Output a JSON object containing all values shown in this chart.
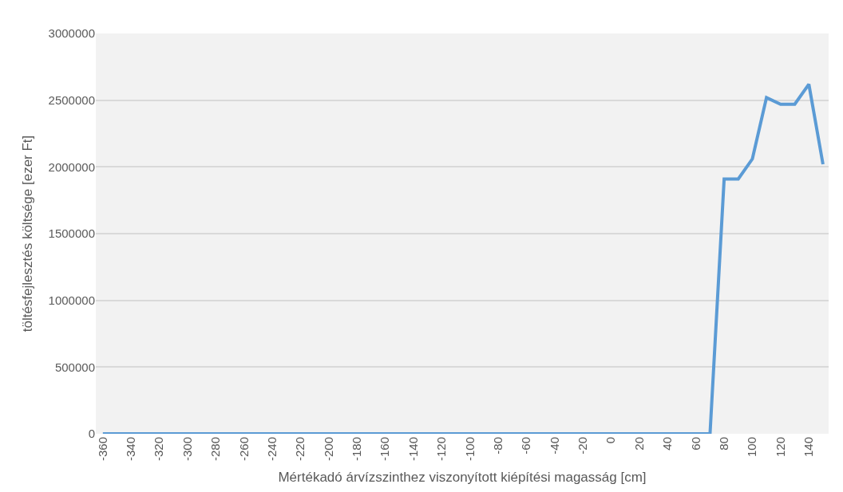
{
  "chart_data": {
    "type": "line",
    "xlabel": "Mértékadó árvízszinthez viszonyított kiépítési magasság [cm]",
    "ylabel": "töltésfejlesztés költsége [ezer Ft]",
    "categories": [
      "-360",
      null,
      "-340",
      null,
      "-320",
      null,
      "-300",
      null,
      "-280",
      null,
      "-260",
      null,
      "-240",
      null,
      "-220",
      null,
      "-200",
      null,
      "-180",
      null,
      "-160",
      null,
      "-140",
      null,
      "-120",
      null,
      "-100",
      null,
      "-80",
      null,
      "-60",
      null,
      "-40",
      null,
      "-20",
      null,
      "0",
      null,
      "20",
      null,
      "40",
      null,
      "60",
      null,
      "80",
      null,
      "100",
      null,
      "120",
      null,
      "140",
      null
    ],
    "series": [
      {
        "color": "#5b9bd5",
        "values": [
          0,
          0,
          0,
          0,
          0,
          0,
          0,
          0,
          0,
          0,
          0,
          0,
          0,
          0,
          0,
          0,
          0,
          0,
          0,
          0,
          0,
          0,
          0,
          0,
          0,
          0,
          0,
          0,
          0,
          0,
          0,
          0,
          0,
          0,
          0,
          0,
          0,
          0,
          0,
          0,
          0,
          0,
          0,
          0,
          1910000,
          1910000,
          2060000,
          2520000,
          2470000,
          2470000,
          2620000,
          2020000
        ]
      }
    ],
    "ylim": [
      0,
      3000000
    ],
    "yticks": [
      0,
      500000,
      1000000,
      1500000,
      2000000,
      2500000,
      3000000
    ],
    "grid": "y",
    "marker": "none",
    "line_style": "solid"
  }
}
